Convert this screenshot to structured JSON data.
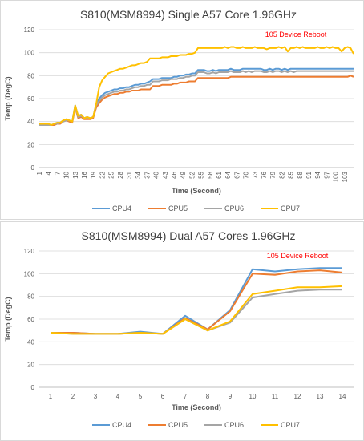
{
  "chart_data": [
    {
      "type": "line",
      "title": "S810(MSM8994) Single A57 Core 1.96GHz",
      "xlabel": "Time (Second)",
      "ylabel": "Temp (DegC)",
      "ylim": [
        0,
        120
      ],
      "yticks": [
        0,
        20,
        40,
        60,
        80,
        100,
        120
      ],
      "grid": true,
      "legend_position": "bottom",
      "annotation": "105 Device Reboot",
      "x_tick_labels": [
        "1",
        "4",
        "7",
        "10",
        "13",
        "16",
        "19",
        "22",
        "25",
        "28",
        "31",
        "34",
        "37",
        "40",
        "43",
        "46",
        "49",
        "52",
        "55",
        "58",
        "61",
        "64",
        "67",
        "70",
        "73",
        "76",
        "79",
        "82",
        "85",
        "88",
        "91",
        "94",
        "97",
        "100",
        "103"
      ],
      "x": [
        1,
        2,
        3,
        4,
        5,
        6,
        7,
        8,
        9,
        10,
        11,
        12,
        13,
        14,
        15,
        16,
        17,
        18,
        19,
        20,
        21,
        22,
        23,
        24,
        25,
        26,
        27,
        28,
        29,
        30,
        31,
        32,
        33,
        34,
        35,
        36,
        37,
        38,
        39,
        40,
        41,
        42,
        43,
        44,
        45,
        46,
        47,
        48,
        49,
        50,
        51,
        52,
        53,
        54,
        55,
        56,
        57,
        58,
        59,
        60,
        61,
        62,
        63,
        64,
        65,
        66,
        67,
        68,
        69,
        70,
        71,
        72,
        73,
        74,
        75,
        76,
        77,
        78,
        79,
        80,
        81,
        82,
        83,
        84,
        85,
        86,
        87,
        88,
        89,
        90,
        91,
        92,
        93,
        94,
        95,
        96,
        97,
        98,
        99,
        100,
        101,
        102,
        103,
        104,
        105,
        106
      ],
      "series": [
        {
          "name": "CPU4",
          "color": "#5b9bd5",
          "values": [
            38,
            38,
            38,
            38,
            37,
            38,
            39,
            39,
            41,
            42,
            41,
            40,
            54,
            45,
            46,
            43,
            44,
            43,
            44,
            55,
            60,
            63,
            65,
            66,
            67,
            68,
            68,
            69,
            69,
            70,
            70,
            71,
            72,
            72,
            73,
            73,
            74,
            75,
            77,
            77,
            77,
            78,
            78,
            78,
            78,
            79,
            79,
            80,
            80,
            81,
            81,
            82,
            82,
            85,
            85,
            85,
            84,
            84,
            85,
            84,
            85,
            85,
            85,
            85,
            86,
            85,
            85,
            85,
            86,
            86,
            86,
            86,
            86,
            86,
            86,
            85,
            85,
            86,
            85,
            86,
            86,
            85,
            86,
            85,
            86,
            86,
            86,
            86,
            86,
            86,
            86,
            86,
            86,
            86,
            86,
            86,
            86,
            86,
            86,
            86,
            86,
            86,
            86,
            86,
            86,
            86
          ]
        },
        {
          "name": "CPU5",
          "color": "#ed7d31",
          "values": [
            37,
            37,
            37,
            37,
            37,
            37,
            38,
            38,
            40,
            41,
            40,
            39,
            52,
            43,
            44,
            42,
            42,
            42,
            43,
            52,
            56,
            59,
            61,
            62,
            63,
            64,
            64,
            65,
            65,
            66,
            66,
            67,
            67,
            67,
            68,
            68,
            68,
            68,
            71,
            71,
            71,
            72,
            72,
            72,
            72,
            73,
            73,
            74,
            74,
            74,
            75,
            75,
            75,
            78,
            78,
            78,
            78,
            78,
            78,
            78,
            78,
            78,
            78,
            78,
            79,
            79,
            79,
            79,
            79,
            79,
            79,
            79,
            79,
            79,
            79,
            79,
            79,
            79,
            79,
            79,
            79,
            79,
            79,
            79,
            79,
            79,
            79,
            79,
            79,
            79,
            79,
            79,
            79,
            79,
            79,
            79,
            79,
            79,
            79,
            79,
            79,
            79,
            79,
            79,
            80,
            79
          ]
        },
        {
          "name": "CPU6",
          "color": "#a5a5a5",
          "values": [
            37,
            37,
            37,
            37,
            37,
            38,
            38,
            39,
            40,
            41,
            41,
            40,
            53,
            44,
            45,
            43,
            43,
            43,
            44,
            54,
            58,
            61,
            63,
            64,
            65,
            66,
            66,
            67,
            67,
            68,
            68,
            69,
            70,
            70,
            71,
            71,
            72,
            72,
            75,
            75,
            75,
            76,
            76,
            76,
            77,
            77,
            77,
            78,
            78,
            79,
            79,
            80,
            80,
            83,
            83,
            83,
            82,
            82,
            83,
            82,
            83,
            83,
            83,
            83,
            84,
            83,
            83,
            83,
            84,
            83,
            84,
            83,
            84,
            84,
            84,
            83,
            83,
            84,
            83,
            84,
            84,
            83,
            84,
            83,
            84,
            83,
            84,
            84,
            84,
            84,
            84,
            84,
            84,
            84,
            84,
            84,
            84,
            84,
            84,
            84,
            84,
            84,
            84,
            84,
            84,
            84
          ]
        },
        {
          "name": "CPU7",
          "color": "#ffc000",
          "values": [
            38,
            38,
            38,
            38,
            37,
            38,
            39,
            39,
            41,
            42,
            41,
            40,
            54,
            45,
            46,
            43,
            44,
            43,
            44,
            55,
            70,
            76,
            79,
            82,
            83,
            84,
            85,
            86,
            86,
            87,
            88,
            89,
            89,
            90,
            91,
            91,
            92,
            95,
            95,
            95,
            95,
            96,
            96,
            96,
            97,
            97,
            97,
            98,
            98,
            98,
            99,
            99,
            100,
            104,
            104,
            104,
            104,
            104,
            104,
            104,
            104,
            104,
            105,
            104,
            105,
            105,
            104,
            104,
            105,
            104,
            104,
            104,
            105,
            104,
            104,
            104,
            103,
            104,
            104,
            104,
            105,
            104,
            105,
            101,
            104,
            104,
            105,
            104,
            105,
            104,
            104,
            104,
            104,
            105,
            104,
            104,
            105,
            104,
            105,
            104,
            104,
            101,
            104,
            105,
            104,
            99
          ]
        }
      ]
    },
    {
      "type": "line",
      "title": "S810(MSM8994) Dual A57 Cores 1.96GHz",
      "xlabel": "Time (Second)",
      "ylabel": "Temp (DegC)",
      "ylim": [
        0,
        120
      ],
      "yticks": [
        0,
        20,
        40,
        60,
        80,
        100,
        120
      ],
      "grid": true,
      "legend_position": "bottom",
      "annotation": "105 Device Reboot",
      "x_tick_labels": [
        "1",
        "2",
        "3",
        "4",
        "5",
        "6",
        "7",
        "8",
        "9",
        "10",
        "11",
        "12",
        "13",
        "14"
      ],
      "x": [
        1,
        2,
        3,
        4,
        5,
        6,
        7,
        8,
        9,
        10,
        11,
        12,
        13,
        14
      ],
      "series": [
        {
          "name": "CPU4",
          "color": "#5b9bd5",
          "values": [
            48,
            48,
            47,
            47,
            49,
            47,
            63,
            51,
            68,
            104,
            102,
            104,
            105,
            105
          ]
        },
        {
          "name": "CPU5",
          "color": "#ed7d31",
          "values": [
            48,
            48,
            47,
            47,
            48,
            47,
            61,
            51,
            67,
            100,
            99,
            102,
            103,
            101
          ]
        },
        {
          "name": "CPU6",
          "color": "#a5a5a5",
          "values": [
            48,
            47,
            47,
            47,
            48,
            47,
            60,
            50,
            57,
            79,
            82,
            85,
            86,
            86
          ]
        },
        {
          "name": "CPU7",
          "color": "#ffc000",
          "values": [
            48,
            47,
            47,
            47,
            48,
            47,
            60,
            50,
            58,
            82,
            85,
            88,
            88,
            89
          ]
        }
      ]
    }
  ]
}
